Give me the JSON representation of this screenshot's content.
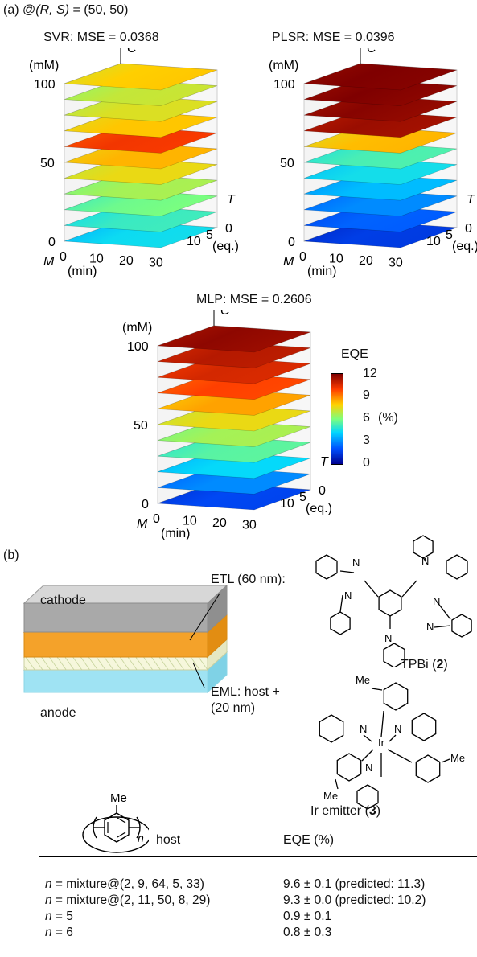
{
  "panel_a": {
    "label": "(a)",
    "condition_prefix": "@",
    "condition_vars": "(R, S)",
    "condition_value": " = (50, 50)",
    "plots": [
      {
        "title": "SVR: MSE = 0.0368",
        "scheme": "svr"
      },
      {
        "title": "PLSR: MSE = 0.0396",
        "scheme": "plsr"
      },
      {
        "title": "MLP: MSE = 0.2606",
        "scheme": "mlp"
      }
    ],
    "axes": {
      "z_var": "C",
      "z_unit": "(mM)",
      "z_ticks": [
        "100",
        "50",
        "0"
      ],
      "x_var": "M",
      "x_ticks": [
        "0",
        "10",
        "20",
        "30"
      ],
      "x_unit": "(min)",
      "y_var": "T",
      "y_ticks": [
        "0",
        "5",
        "10"
      ],
      "y_unit": "(eq.)"
    },
    "colorbar": {
      "title": "EQE",
      "unit": "(%)",
      "ticks": [
        "12",
        "9",
        "6",
        "3",
        "0"
      ],
      "colors": [
        "#00008f",
        "#0050ff",
        "#00d7ff",
        "#7dff7d",
        "#ffd200",
        "#ff3c00",
        "#7f0000"
      ]
    }
  },
  "panel_b": {
    "label": "(b)",
    "device": {
      "cathode": "cathode",
      "anode": "anode",
      "etl": "ETL (60 nm):",
      "eml": "EML: host +",
      "eml_thickness": "(20 nm)"
    },
    "tpbi": {
      "name": "TPBi (",
      "num": "2",
      "close": ")"
    },
    "ir": {
      "name": "Ir emitter (",
      "num": "3",
      "close": ")"
    },
    "host_struct": {
      "me": "Me",
      "n": "n"
    },
    "table": {
      "col_host": "host",
      "col_eqe": "EQE (%)",
      "rows": [
        {
          "n": "n",
          "host": " = mixture@(2,  9, 64, 5, 33)",
          "eqe": "9.6 ± 0.1 (predicted: 11.3)"
        },
        {
          "n": "n",
          "host": " = mixture@(2, 11, 50, 8, 29)",
          "eqe": "9.3 ± 0.0 (predicted: 10.2)"
        },
        {
          "n": "n",
          "host": " = 5",
          "eqe": "0.9 ± 0.1"
        },
        {
          "n": "n",
          "host": " = 6",
          "eqe": "0.8 ± 0.3"
        }
      ]
    }
  }
}
